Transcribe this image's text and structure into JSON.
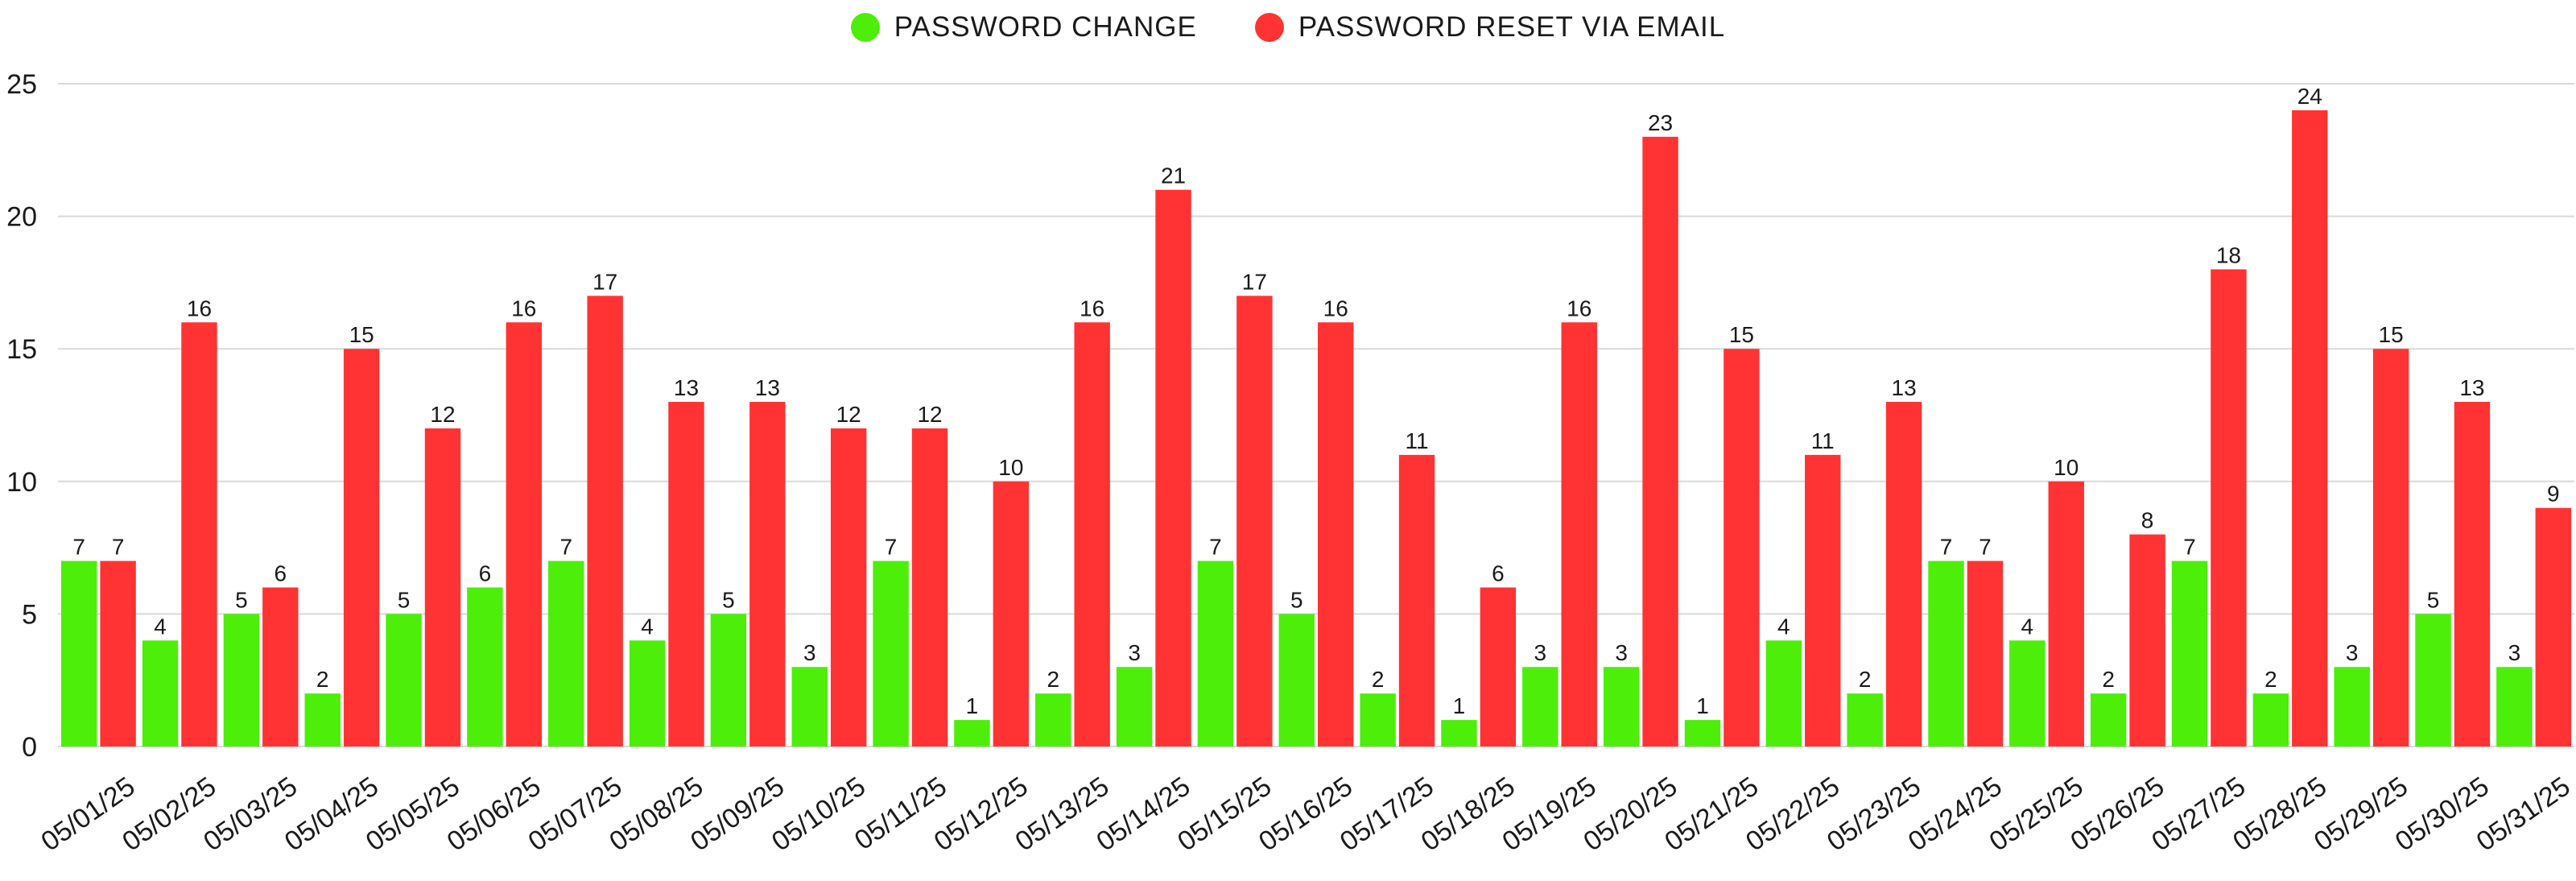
{
  "chart_data": {
    "type": "bar",
    "title": "",
    "xlabel": "",
    "ylabel": "",
    "ylim": [
      0,
      25
    ],
    "yticks": [
      0,
      5,
      10,
      15,
      20,
      25
    ],
    "grid": true,
    "legend_position": "top-center",
    "categories": [
      "05/01/25",
      "05/02/25",
      "05/03/25",
      "05/04/25",
      "05/05/25",
      "05/06/25",
      "05/07/25",
      "05/08/25",
      "05/09/25",
      "05/10/25",
      "05/11/25",
      "05/12/25",
      "05/13/25",
      "05/14/25",
      "05/15/25",
      "05/16/25",
      "05/17/25",
      "05/18/25",
      "05/19/25",
      "05/20/25",
      "05/21/25",
      "05/22/25",
      "05/23/25",
      "05/24/25",
      "05/25/25",
      "05/26/25",
      "05/27/25",
      "05/28/25",
      "05/29/25",
      "05/30/25",
      "05/31/25"
    ],
    "series": [
      {
        "name": "PASSWORD CHANGE",
        "color": "#4cee0a",
        "values": [
          7,
          4,
          5,
          2,
          5,
          6,
          7,
          4,
          5,
          3,
          7,
          1,
          2,
          3,
          7,
          5,
          2,
          1,
          3,
          3,
          1,
          4,
          2,
          7,
          4,
          2,
          7,
          2,
          3,
          5,
          3
        ]
      },
      {
        "name": "PASSWORD RESET VIA EMAIL",
        "color": "#ff3333",
        "values": [
          7,
          16,
          6,
          15,
          12,
          16,
          17,
          13,
          13,
          12,
          12,
          10,
          16,
          21,
          17,
          16,
          11,
          6,
          16,
          23,
          15,
          11,
          13,
          7,
          10,
          8,
          18,
          24,
          15,
          13,
          9
        ]
      }
    ]
  }
}
